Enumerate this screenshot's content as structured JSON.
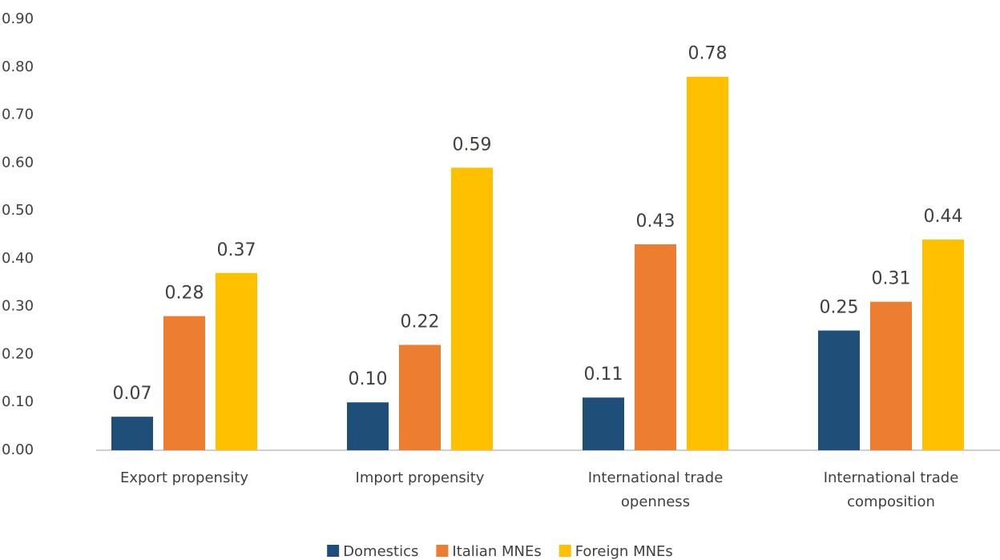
{
  "chart_data": {
    "type": "bar",
    "categories": [
      "Export propensity",
      "Import propensity",
      "International trade openness",
      "International trade composition"
    ],
    "series": [
      {
        "name": "Domestics",
        "color": "#1f4e79",
        "values": [
          0.07,
          0.1,
          0.11,
          0.25
        ],
        "value_labels": [
          "0.07",
          "0.10",
          "0.11",
          "0.25"
        ]
      },
      {
        "name": "Italian MNEs",
        "color": "#ed7d31",
        "values": [
          0.28,
          0.22,
          0.43,
          0.31
        ],
        "value_labels": [
          "0.28",
          "0.22",
          "0.43",
          "0.31"
        ]
      },
      {
        "name": "Foreign MNEs",
        "color": "#ffc000",
        "values": [
          0.37,
          0.59,
          0.78,
          0.44
        ],
        "value_labels": [
          "0.37",
          "0.59",
          "0.78",
          "0.44"
        ]
      }
    ],
    "ylim": [
      0,
      0.9
    ],
    "yticks": [
      {
        "value": 0,
        "label": "0.00"
      },
      {
        "value": 0.1,
        "label": "0.10"
      },
      {
        "value": 0.2,
        "label": "0.20"
      },
      {
        "value": 0.3,
        "label": "0.30"
      },
      {
        "value": 0.4,
        "label": "0.40"
      },
      {
        "value": 0.5,
        "label": "0.50"
      },
      {
        "value": 0.6,
        "label": "0.60"
      },
      {
        "value": 0.7,
        "label": "0.70"
      },
      {
        "value": 0.8,
        "label": "0.80"
      },
      {
        "value": 0.9,
        "label": "0.90"
      }
    ],
    "grid": false,
    "legend": "bottom"
  }
}
